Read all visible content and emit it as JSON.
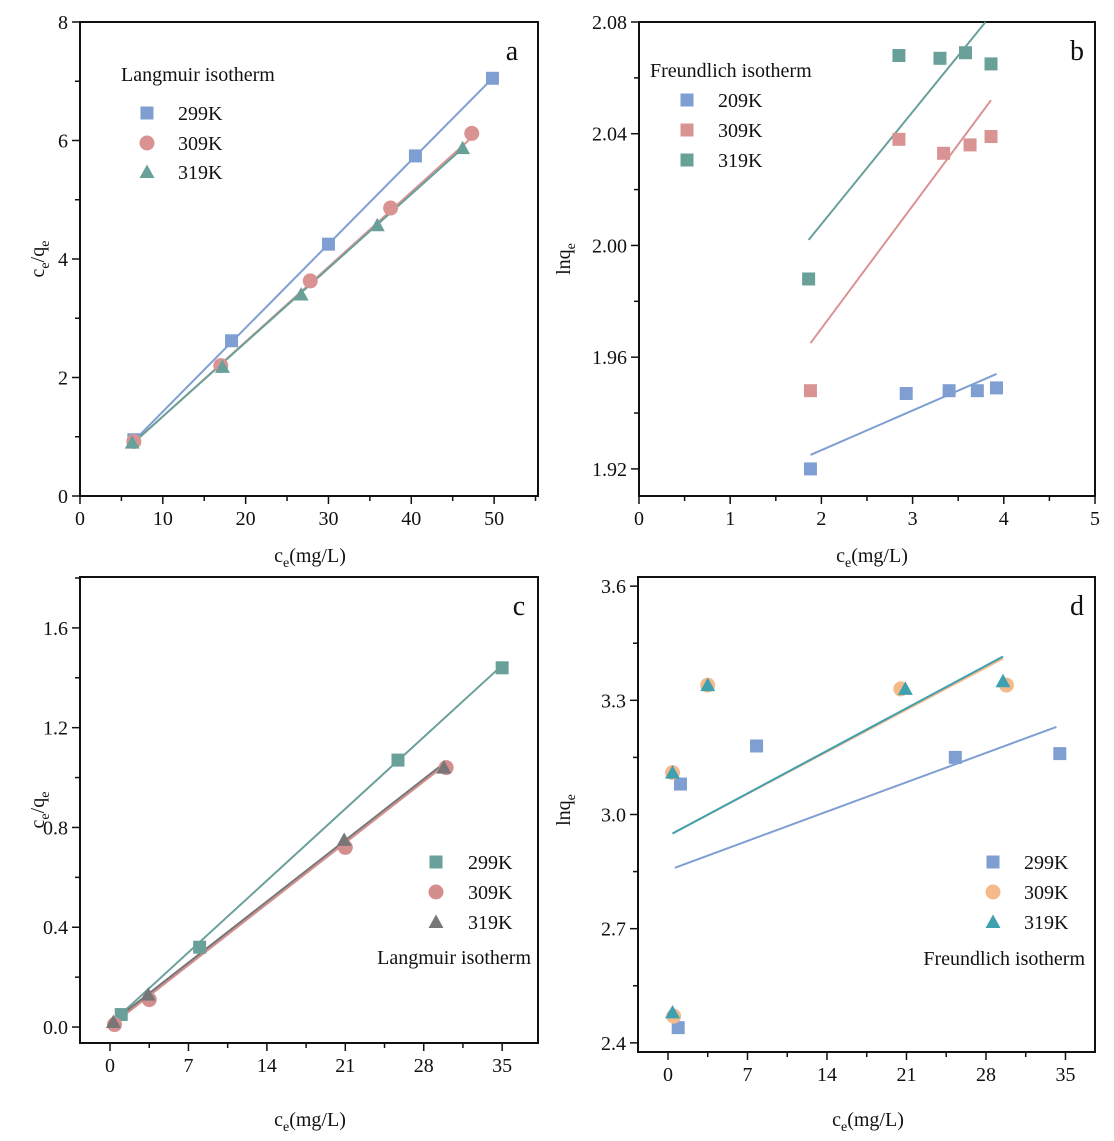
{
  "chart_data": [
    {
      "panel_label": "a",
      "type": "scatter",
      "legend_title": "Langmuir isotherm",
      "legend_placement": "top-left",
      "xlabel": [
        {
          "t": "c"
        },
        {
          "t": "e",
          "sub": true
        },
        {
          "t": "(mg/L)"
        }
      ],
      "ylabel": [
        {
          "t": "c"
        },
        {
          "t": "e",
          "sub": true
        },
        {
          "t": "/q"
        },
        {
          "t": "e",
          "sub": true
        }
      ],
      "xlim": [
        0,
        55.3
      ],
      "ylim": [
        0,
        8
      ],
      "xticks": [
        "0",
        "10",
        "20",
        "30",
        "40",
        "50"
      ],
      "xtick_values": [
        0,
        10,
        20,
        30,
        40,
        50
      ],
      "xminor": 5,
      "yticks": [
        "0",
        "2",
        "4",
        "6",
        "8"
      ],
      "ytick_values": [
        0,
        2,
        4,
        6,
        8
      ],
      "yminor": 1,
      "grid": false,
      "series": [
        {
          "name": "299K",
          "marker": "square",
          "color": "#7f9fd2",
          "x": [
            6.5,
            18.3,
            30,
            40.5,
            49.8
          ],
          "y": [
            0.95,
            2.62,
            4.25,
            5.74,
            7.05
          ],
          "fit": [
            [
              6.5,
              0.93
            ],
            [
              49.8,
              7.05
            ]
          ]
        },
        {
          "name": "309K",
          "marker": "circle",
          "color": "#d99393",
          "x": [
            6.5,
            17,
            27.8,
            37.5,
            47.3
          ],
          "y": [
            0.92,
            2.2,
            3.63,
            4.86,
            6.12
          ],
          "fit": [
            [
              6.5,
              0.9
            ],
            [
              47.3,
              6.05
            ]
          ]
        },
        {
          "name": "319K",
          "marker": "triangle",
          "color": "#6aa09a",
          "x": [
            6.3,
            17.2,
            26.7,
            35.9,
            46.2
          ],
          "y": [
            0.9,
            2.18,
            3.4,
            4.57,
            5.87
          ],
          "fit": [
            [
              6.3,
              0.88
            ],
            [
              46.2,
              5.87
            ]
          ]
        }
      ]
    },
    {
      "panel_label": "b",
      "type": "scatter",
      "legend_title": "Freundlich isotherm",
      "legend_placement": "top-left",
      "xlabel": [
        {
          "t": "c"
        },
        {
          "t": "e",
          "sub": true
        },
        {
          "t": "(mg/L)"
        }
      ],
      "ylabel": [
        {
          "t": "lnq"
        },
        {
          "t": "e",
          "sub": true
        }
      ],
      "xlim": [
        0,
        5
      ],
      "ylim": [
        1.9103,
        2.08
      ],
      "xticks": [
        "0",
        "1",
        "2",
        "3",
        "4",
        "5"
      ],
      "xtick_values": [
        0,
        1,
        2,
        3,
        4,
        5
      ],
      "xminor": 0.5,
      "yticks": [
        "1.92",
        "1.96",
        "2.00",
        "2.04",
        "2.08"
      ],
      "ytick_values": [
        1.92,
        1.96,
        2.0,
        2.04,
        2.08
      ],
      "yminor": 0.02,
      "grid": false,
      "series": [
        {
          "name": "209K",
          "marker": "square",
          "color": "#7f9fd2",
          "x": [
            1.88,
            2.93,
            3.4,
            3.71,
            3.92
          ],
          "y": [
            1.92,
            1.947,
            1.948,
            1.948,
            1.949
          ],
          "fit": [
            [
              1.88,
              1.925
            ],
            [
              3.92,
              1.954
            ]
          ]
        },
        {
          "name": "309K",
          "marker": "square",
          "color": "#d99393",
          "x": [
            1.88,
            2.85,
            3.34,
            3.63,
            3.86
          ],
          "y": [
            1.948,
            2.038,
            2.033,
            2.036,
            2.039
          ],
          "fit": [
            [
              1.88,
              1.965
            ],
            [
              3.86,
              2.052
            ]
          ]
        },
        {
          "name": "319K",
          "marker": "square",
          "color": "#6aa09a",
          "x": [
            1.86,
            2.85,
            3.3,
            3.58,
            3.86
          ],
          "y": [
            1.988,
            2.068,
            2.067,
            2.069,
            2.065
          ],
          "fit": [
            [
              1.86,
              2.002
            ],
            [
              3.8,
              2.08
            ]
          ]
        }
      ]
    },
    {
      "panel_label": "c",
      "type": "scatter",
      "legend_title": "Langmuir isotherm",
      "legend_placement": "bottom-right",
      "xlabel": [
        {
          "t": "c"
        },
        {
          "t": "e",
          "sub": true
        },
        {
          "t": "(mg/L)"
        }
      ],
      "ylabel": [
        {
          "t": "c"
        },
        {
          "t": "e",
          "sub": true
        },
        {
          "t": "/q"
        },
        {
          "t": "e",
          "sub": true
        }
      ],
      "xlim": [
        -2.68,
        38.2
      ],
      "ylim": [
        -0.064,
        1.804
      ],
      "xticks": [
        "0",
        "7",
        "14",
        "21",
        "28",
        "35"
      ],
      "xtick_values": [
        0,
        7,
        14,
        21,
        28,
        35
      ],
      "xminor": 3.5,
      "yticks": [
        "0.0",
        "0.4",
        "0.8",
        "1.2",
        "1.6"
      ],
      "ytick_values": [
        0,
        0.4,
        0.8,
        1.2,
        1.6
      ],
      "yminor": 0.2,
      "grid": false,
      "series": [
        {
          "name": "299K",
          "marker": "square",
          "color": "#6aa09a",
          "x": [
            1.0,
            8.0,
            25.7,
            35.0
          ],
          "y": [
            0.05,
            0.32,
            1.07,
            1.44
          ],
          "fit": [
            [
              0.2,
              0.02
            ],
            [
              35.0,
              1.45
            ]
          ]
        },
        {
          "name": "309K",
          "marker": "circle",
          "color": "#d48e8e",
          "x": [
            0.4,
            3.5,
            21.0,
            30.0
          ],
          "y": [
            0.01,
            0.11,
            0.72,
            1.04
          ],
          "fit": [
            [
              0.2,
              0.01
            ],
            [
              29.6,
              1.04
            ]
          ]
        },
        {
          "name": "319K",
          "marker": "triangle",
          "color": "#777777",
          "x": [
            0.3,
            3.4,
            20.9,
            29.8
          ],
          "y": [
            0.02,
            0.13,
            0.75,
            1.04
          ],
          "fit": [
            [
              0.2,
              0.02
            ],
            [
              29.6,
              1.05
            ]
          ]
        }
      ]
    },
    {
      "panel_label": "d",
      "type": "scatter",
      "legend_title": "Freundlich isotherm",
      "legend_placement": "bottom-right",
      "xlabel": [
        {
          "t": "c"
        },
        {
          "t": "e",
          "sub": true
        },
        {
          "t": "(mg/L)"
        }
      ],
      "ylabel": [
        {
          "t": "lnq"
        },
        {
          "t": "e",
          "sub": true
        }
      ],
      "xlim": [
        -2.64,
        37.6
      ],
      "ylim": [
        2.376,
        3.624
      ],
      "xticks": [
        "0",
        "7",
        "14",
        "21",
        "28",
        "35"
      ],
      "xtick_values": [
        0,
        7,
        14,
        21,
        28,
        35
      ],
      "xminor": 3.5,
      "yticks": [
        "2.4",
        "2.7",
        "3.0",
        "3.3",
        "3.6"
      ],
      "ytick_values": [
        2.4,
        2.7,
        3.0,
        3.3,
        3.6
      ],
      "yminor": 0.15,
      "grid": false,
      "series": [
        {
          "name": "299K",
          "marker": "square",
          "color": "#7f9fd2",
          "x": [
            1.1,
            7.8,
            25.3,
            34.5,
            0.9
          ],
          "y": [
            3.08,
            3.18,
            3.15,
            3.16,
            2.44
          ],
          "fit": [
            [
              0.6,
              2.86
            ],
            [
              34.2,
              3.23
            ]
          ]
        },
        {
          "name": "309K",
          "marker": "circle",
          "color": "#f5b98a",
          "x": [
            0.4,
            3.5,
            20.5,
            29.8,
            0.5
          ],
          "y": [
            3.11,
            3.34,
            3.33,
            3.34,
            2.47
          ],
          "fit": [
            [
              0.4,
              2.95
            ],
            [
              29.5,
              3.41
            ]
          ]
        },
        {
          "name": "319K",
          "marker": "triangle",
          "color": "#3fa0b0",
          "x": [
            0.4,
            3.5,
            20.9,
            29.5,
            0.4
          ],
          "y": [
            3.11,
            3.34,
            3.33,
            3.35,
            2.48
          ],
          "fit": [
            [
              0.4,
              2.95
            ],
            [
              29.5,
              3.415
            ]
          ]
        }
      ]
    }
  ]
}
